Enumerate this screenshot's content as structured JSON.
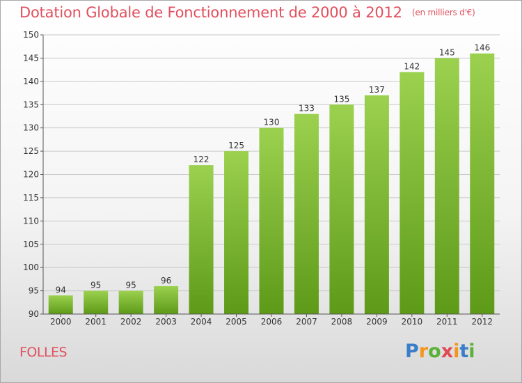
{
  "title": "Dotation Globale de Fonctionnement de 2000 à 2012",
  "title_unit": "(en milliers d'€)",
  "commune": "FOLLES",
  "logo": "Proxiti",
  "colors": {
    "title": "#e0505e",
    "bar_top": "#9bd14f",
    "bar_bottom": "#5d9a18",
    "grid": "#c8c8c8"
  },
  "chart_data": {
    "type": "bar",
    "title": "Dotation Globale de Fonctionnement de 2000 à 2012",
    "subtitle": "(en milliers d'€)",
    "categories": [
      "2000",
      "2001",
      "2002",
      "2003",
      "2004",
      "2005",
      "2006",
      "2007",
      "2008",
      "2009",
      "2010",
      "2011",
      "2012"
    ],
    "values": [
      94,
      95,
      95,
      96,
      122,
      125,
      130,
      133,
      135,
      137,
      142,
      145,
      146
    ],
    "ylim": [
      90,
      150
    ],
    "yticks": [
      90,
      95,
      100,
      105,
      110,
      115,
      120,
      125,
      130,
      135,
      140,
      145,
      150
    ],
    "grid": true,
    "legend": "none"
  }
}
